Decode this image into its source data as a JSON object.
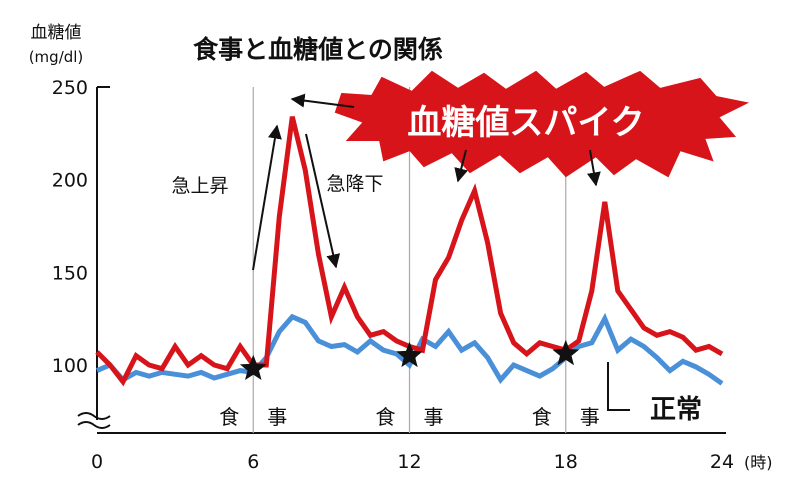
{
  "chart_data": {
    "type": "line",
    "title": "食事と血糖値との関係",
    "ylabel": "血糖値",
    "yunit": "(mg/dl)",
    "xunit": "(時)",
    "xlim": [
      0,
      24
    ],
    "ylim_visible": [
      100,
      250
    ],
    "y_break": true,
    "grid": false,
    "x_ticks": [
      "0",
      "6",
      "12",
      "18",
      "24"
    ],
    "y_ticks": [
      "100",
      "150",
      "200",
      "250"
    ],
    "meal_times": [
      6,
      12,
      18
    ],
    "meal_label_chars": [
      "食",
      "事"
    ],
    "series": [
      {
        "name": "血糖値スパイク",
        "color": "#d7141a",
        "points": [
          [
            0,
            107
          ],
          [
            0.5,
            100
          ],
          [
            1,
            91
          ],
          [
            1.5,
            105
          ],
          [
            2,
            100
          ],
          [
            2.5,
            98
          ],
          [
            3,
            110
          ],
          [
            3.5,
            100
          ],
          [
            4,
            105
          ],
          [
            4.5,
            100
          ],
          [
            5,
            98
          ],
          [
            5.5,
            110
          ],
          [
            6,
            100
          ],
          [
            6.5,
            100
          ],
          [
            7,
            180
          ],
          [
            7.5,
            234
          ],
          [
            8,
            205
          ],
          [
            8.5,
            160
          ],
          [
            9,
            126
          ],
          [
            9.5,
            142
          ],
          [
            10,
            126
          ],
          [
            10.5,
            116
          ],
          [
            11,
            118
          ],
          [
            11.5,
            113
          ],
          [
            12,
            110
          ],
          [
            12.5,
            108
          ],
          [
            13,
            146
          ],
          [
            13.5,
            158
          ],
          [
            14,
            178
          ],
          [
            14.5,
            194
          ],
          [
            15,
            166
          ],
          [
            15.5,
            128
          ],
          [
            16,
            112
          ],
          [
            16.5,
            106
          ],
          [
            17,
            112
          ],
          [
            17.5,
            110
          ],
          [
            18,
            108
          ],
          [
            18.5,
            113
          ],
          [
            19,
            140
          ],
          [
            19.5,
            188
          ],
          [
            20,
            140
          ],
          [
            20.5,
            130
          ],
          [
            21,
            120
          ],
          [
            21.5,
            116
          ],
          [
            22,
            118
          ],
          [
            22.5,
            115
          ],
          [
            23,
            108
          ],
          [
            23.5,
            110
          ],
          [
            24,
            106
          ]
        ]
      },
      {
        "name": "正常",
        "color": "#4a90d9",
        "points": [
          [
            0,
            97
          ],
          [
            0.5,
            100
          ],
          [
            1,
            92
          ],
          [
            1.5,
            96
          ],
          [
            2,
            94
          ],
          [
            2.5,
            96
          ],
          [
            3,
            95
          ],
          [
            3.5,
            94
          ],
          [
            4,
            96
          ],
          [
            4.5,
            93
          ],
          [
            5,
            95
          ],
          [
            5.5,
            97
          ],
          [
            6,
            96
          ],
          [
            6.5,
            104
          ],
          [
            7,
            118
          ],
          [
            7.5,
            126
          ],
          [
            8,
            123
          ],
          [
            8.5,
            113
          ],
          [
            9,
            110
          ],
          [
            9.5,
            111
          ],
          [
            10,
            107
          ],
          [
            10.5,
            113
          ],
          [
            11,
            108
          ],
          [
            11.5,
            106
          ],
          [
            12,
            100
          ],
          [
            12.5,
            114
          ],
          [
            13,
            110
          ],
          [
            13.5,
            118
          ],
          [
            14,
            108
          ],
          [
            14.5,
            112
          ],
          [
            15,
            104
          ],
          [
            15.5,
            92
          ],
          [
            16,
            100
          ],
          [
            16.5,
            97
          ],
          [
            17,
            94
          ],
          [
            17.5,
            98
          ],
          [
            18,
            104
          ],
          [
            18.5,
            110
          ],
          [
            19,
            112
          ],
          [
            19.5,
            125
          ],
          [
            20,
            108
          ],
          [
            20.5,
            114
          ],
          [
            21,
            110
          ],
          [
            21.5,
            104
          ],
          [
            22,
            97
          ],
          [
            22.5,
            102
          ],
          [
            23,
            99
          ],
          [
            23.5,
            95
          ],
          [
            24,
            90
          ]
        ]
      }
    ],
    "annotations": {
      "spike_label": "血糖値スパイク",
      "rise_label": "急上昇",
      "fall_label": "急降下",
      "normal_label": "正常"
    }
  }
}
